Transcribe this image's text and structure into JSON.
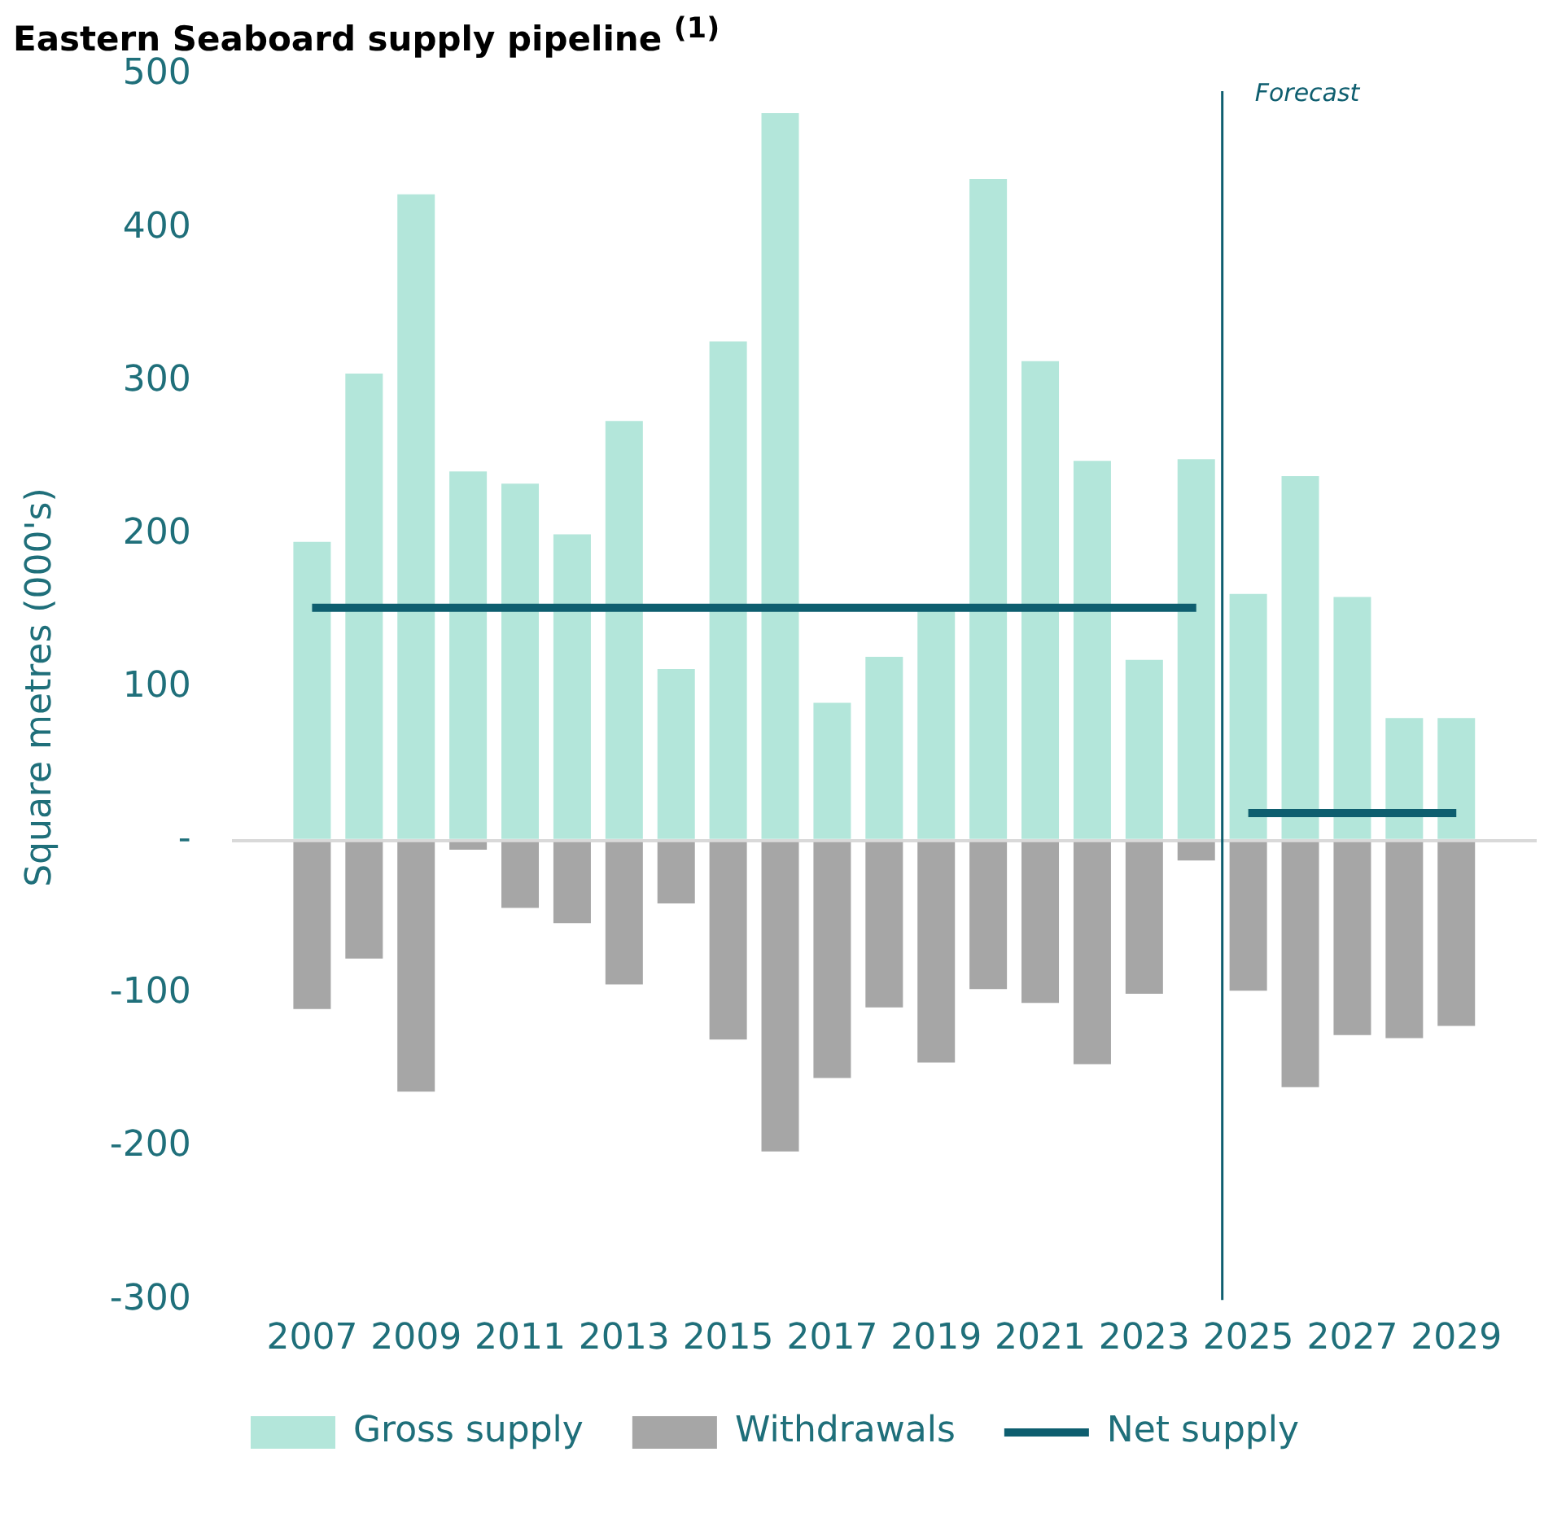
{
  "chart_data": {
    "type": "bar",
    "title": "Eastern Seaboard supply pipeline $^{(1)}$",
    "ylabel": "Square metres (000's)",
    "x": [
      2007,
      2008,
      2009,
      2010,
      2011,
      2012,
      2013,
      2014,
      2015,
      2016,
      2017,
      2018,
      2019,
      2020,
      2021,
      2022,
      2023,
      2024,
      2025,
      2026,
      2027,
      2028,
      2029
    ],
    "xlim": [
      2006.5,
      2029.5
    ],
    "xticks": [
      2007,
      2009,
      2011,
      2013,
      2015,
      2017,
      2019,
      2021,
      2023,
      2025,
      2027,
      2029
    ],
    "ylim": [
      -300,
      500
    ],
    "yticks": [
      -300,
      -200,
      -100,
      {
        "value": 0,
        "label": "-"
      },
      100,
      200,
      300,
      400,
      500
    ],
    "stacked": true,
    "legend": "bottom",
    "series": [
      {
        "name": "Gross supply",
        "color": "#b3e6da",
        "values": [
          195,
          305,
          422,
          241,
          233,
          200,
          274,
          112,
          326,
          475,
          90,
          120,
          150,
          432,
          313,
          248,
          118,
          249,
          161,
          238,
          159,
          80,
          80
        ]
      },
      {
        "name": "Withdrawals",
        "color": "#a6a6a6",
        "values": [
          -110,
          -77,
          -164,
          -6,
          -44,
          -54,
          -94,
          -41,
          -130,
          -203,
          -155,
          -109,
          -145,
          -97,
          -106,
          -146,
          -100,
          -13,
          -98,
          -161,
          -127,
          -129,
          -121
        ]
      },
      {
        "name": "Net supply",
        "type": "line",
        "color": "#0e5e6f",
        "values": [
          152,
          152,
          152,
          152,
          152,
          152,
          152,
          152,
          152,
          152,
          152,
          152,
          152,
          152,
          152,
          152,
          152,
          152,
          18,
          18,
          18,
          18,
          18
        ]
      }
    ],
    "ref_lines": [
      {
        "axis": "x",
        "value": 2024.5,
        "label": "Forecast",
        "color": "#0e5e6f"
      }
    ]
  }
}
